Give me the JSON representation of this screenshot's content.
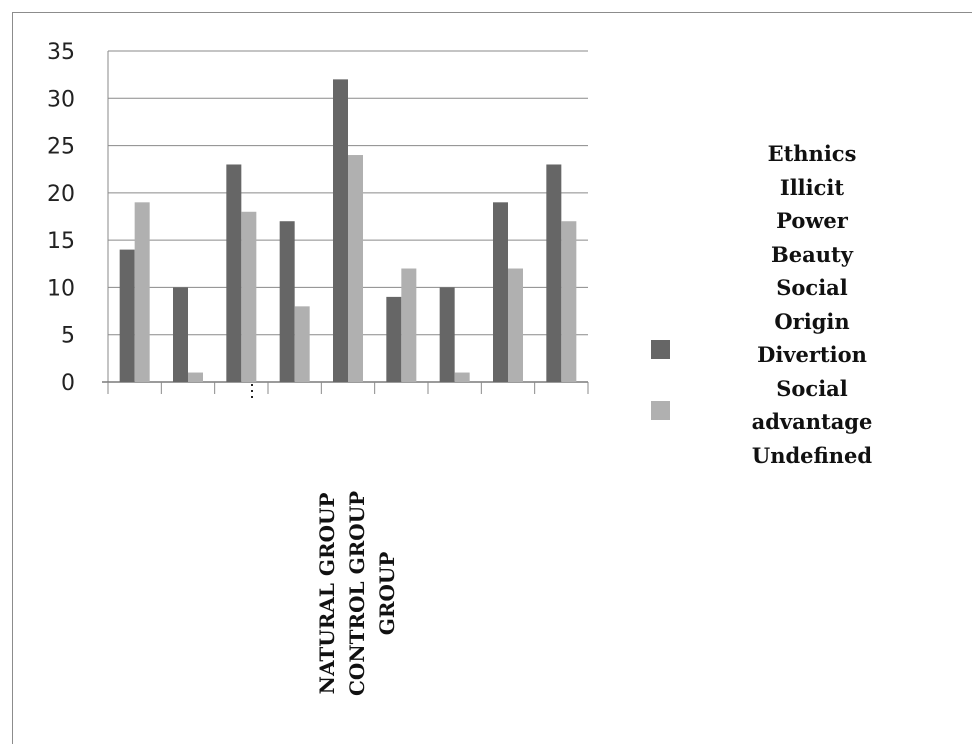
{
  "chart_data": {
    "type": "bar",
    "categories": [
      "Ethnics",
      "Illicit",
      "Power",
      "Beauty",
      "Social Origin",
      "Divertion",
      "Social advantage",
      "Undefined",
      ""
    ],
    "series": [
      {
        "values": [
          14,
          10,
          23,
          17,
          32,
          9,
          10,
          19,
          23
        ],
        "color": "#666666"
      },
      {
        "values": [
          19,
          1,
          18,
          8,
          24,
          12,
          1,
          12,
          17
        ],
        "color": "#b0b0b0"
      }
    ],
    "yticks": [
      0,
      5,
      10,
      15,
      20,
      25,
      30,
      35
    ],
    "ylim": [
      0,
      35
    ],
    "grid": true,
    "legend_placement": "right",
    "legend_text": [
      "Ethnics",
      "Illicit",
      "Power",
      "Beauty",
      "Social",
      "Origin",
      "Divertion",
      "Social",
      "advantage",
      "Undefined"
    ],
    "axis_title_lines": [
      "NATURAL GROUP",
      "CONTROL GROUP",
      "GROUP"
    ]
  }
}
